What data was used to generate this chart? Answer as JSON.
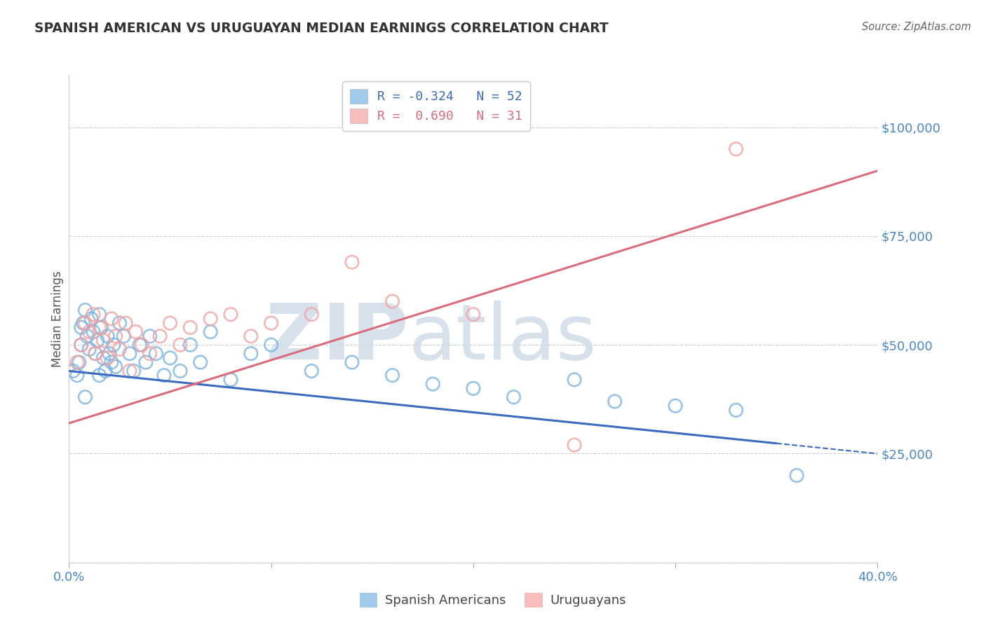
{
  "title": "SPANISH AMERICAN VS URUGUAYAN MEDIAN EARNINGS CORRELATION CHART",
  "source": "Source: ZipAtlas.com",
  "ylabel": "Median Earnings",
  "yticks": [
    0,
    25000,
    50000,
    75000,
    100000
  ],
  "ytick_labels_right": [
    "",
    "$25,000",
    "$50,000",
    "$75,000",
    "$100,000"
  ],
  "xlim": [
    0.0,
    0.4
  ],
  "ylim": [
    0,
    112000
  ],
  "legend_blue_r": "-0.324",
  "legend_blue_n": "52",
  "legend_pink_r": "0.690",
  "legend_pink_n": "31",
  "blue_color": "#7ab3e0",
  "pink_color": "#f4a0a0",
  "blue_line_color": "#3a6bbf",
  "pink_line_color": "#d96b7a",
  "legend_label_blue": "Spanish Americans",
  "legend_label_pink": "Uruguayans",
  "blue_scatter_x": [
    0.002,
    0.004,
    0.005,
    0.006,
    0.007,
    0.008,
    0.009,
    0.01,
    0.011,
    0.012,
    0.013,
    0.014,
    0.015,
    0.016,
    0.017,
    0.018,
    0.019,
    0.02,
    0.021,
    0.022,
    0.023,
    0.025,
    0.027,
    0.03,
    0.032,
    0.035,
    0.038,
    0.04,
    0.043,
    0.047,
    0.05,
    0.055,
    0.06,
    0.065,
    0.07,
    0.08,
    0.09,
    0.1,
    0.12,
    0.14,
    0.16,
    0.18,
    0.2,
    0.22,
    0.25,
    0.27,
    0.3,
    0.33,
    0.006,
    0.008,
    0.015,
    0.36
  ],
  "blue_scatter_y": [
    44000,
    43000,
    46000,
    50000,
    55000,
    58000,
    52000,
    49000,
    56000,
    53000,
    48000,
    51000,
    57000,
    54000,
    47000,
    44000,
    52000,
    48000,
    46000,
    50000,
    45000,
    55000,
    52000,
    48000,
    44000,
    50000,
    46000,
    52000,
    48000,
    43000,
    47000,
    44000,
    50000,
    46000,
    53000,
    42000,
    48000,
    50000,
    44000,
    46000,
    43000,
    41000,
    40000,
    38000,
    42000,
    37000,
    36000,
    35000,
    54000,
    38000,
    43000,
    20000
  ],
  "pink_scatter_x": [
    0.004,
    0.006,
    0.008,
    0.01,
    0.012,
    0.013,
    0.015,
    0.017,
    0.019,
    0.021,
    0.023,
    0.025,
    0.028,
    0.03,
    0.033,
    0.036,
    0.04,
    0.045,
    0.05,
    0.055,
    0.06,
    0.07,
    0.08,
    0.09,
    0.1,
    0.12,
    0.14,
    0.16,
    0.2,
    0.25,
    0.33
  ],
  "pink_scatter_y": [
    46000,
    50000,
    55000,
    53000,
    57000,
    48000,
    54000,
    51000,
    47000,
    56000,
    52000,
    49000,
    55000,
    44000,
    53000,
    50000,
    48000,
    52000,
    55000,
    50000,
    54000,
    56000,
    57000,
    52000,
    55000,
    57000,
    69000,
    60000,
    57000,
    27000,
    95000
  ],
  "blue_line_x": [
    0.0,
    0.4
  ],
  "blue_line_y": [
    44000,
    25000
  ],
  "blue_line_solid_end": 0.35,
  "pink_line_x": [
    0.0,
    0.4
  ],
  "pink_line_y": [
    32000,
    90000
  ],
  "grid_color": "#cccccc",
  "background_color": "#ffffff",
  "title_color": "#333333",
  "tick_label_color": "#4a86c8",
  "source_color": "#666666"
}
